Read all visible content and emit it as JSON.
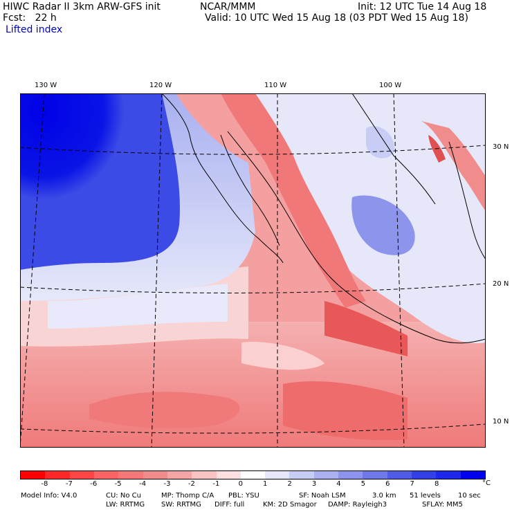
{
  "header": {
    "left1": "HIWC Radar II 3km ARW-GFS init",
    "left1b": "NCAR/MMM",
    "left2": "Fcst:   22 h",
    "field": "Lifted index",
    "right1": "Init: 12 UTC Tue 14 Aug 18",
    "right2": "Valid: 10 UTC Wed 15 Aug 18 (03 PDT Wed 15 Aug 18)"
  },
  "map": {
    "lon_labels": [
      "130 W",
      "120 W",
      "110 W",
      "100 W"
    ],
    "lat_labels": [
      "30 N",
      "20 N",
      "10 N"
    ],
    "field_name": "Lifted index",
    "units": "°C"
  },
  "colorbar": {
    "colors": [
      "#ff0000",
      "#ff2828",
      "#ff4646",
      "#fa6464",
      "#f57878",
      "#f08c8c",
      "#f5a5a5",
      "#fac3c3",
      "#fde0e0",
      "#ffffff",
      "#e6e8fa",
      "#c8cdf5",
      "#aab0f0",
      "#8c94eb",
      "#6e78e6",
      "#505ce6",
      "#3240e6",
      "#1e28eb",
      "#0000f0"
    ],
    "labels": [
      "-8",
      "-7",
      "-6",
      "-5",
      "-4",
      "-3",
      "-2",
      "-1",
      "0",
      "1",
      "2",
      "3",
      "4",
      "5",
      "6",
      "7",
      "8"
    ],
    "unit": "°C"
  },
  "footer": {
    "line1": [
      "Model Info: V4.0",
      "CU: No Cu",
      "MP: Thomp C/A",
      "PBL: YSU",
      "SF: Noah LSM",
      "3.0 km",
      "51 levels",
      "10 sec"
    ],
    "line2": [
      "LW: RRTMG",
      "SW: RRTMG",
      "DIFF: full",
      "KM: 2D Smagor",
      "DAMP: Rayleigh3",
      "SFLAY: MM5"
    ]
  }
}
